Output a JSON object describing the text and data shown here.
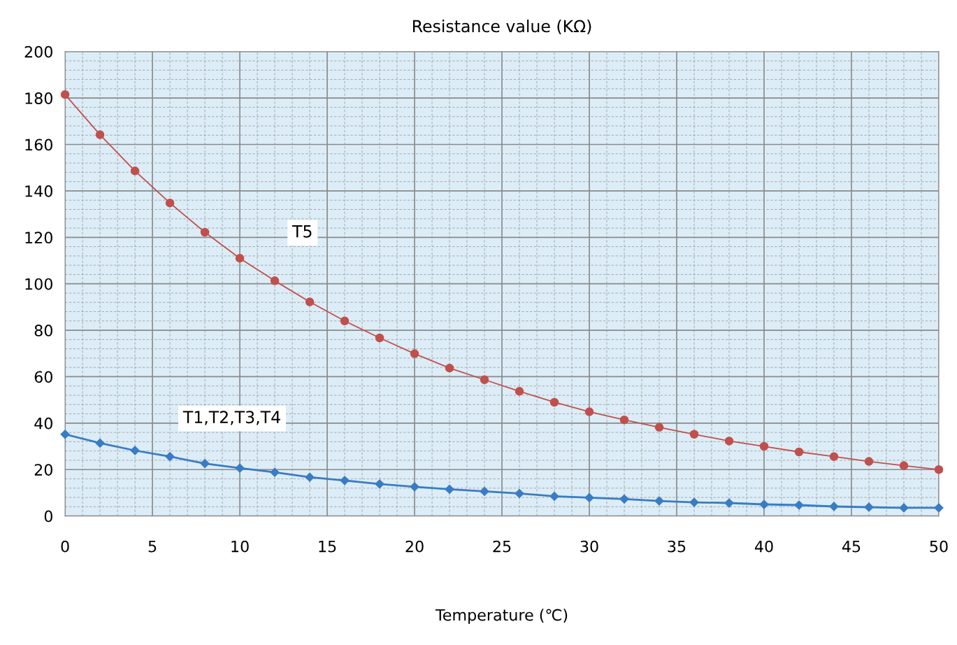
{
  "chart_data": {
    "type": "line",
    "title": "Resistance value (KΩ)",
    "xlabel": "Temperature (℃)",
    "x": [
      0,
      2,
      4,
      6,
      8,
      10,
      12,
      14,
      16,
      18,
      20,
      22,
      24,
      26,
      28,
      30,
      32,
      34,
      36,
      38,
      40,
      42,
      44,
      46,
      48,
      50
    ],
    "series": [
      {
        "name": "T5",
        "color": "#c0504d",
        "marker": "circle",
        "values": [
          181.5,
          164.2,
          148.6,
          134.8,
          122.2,
          111.0,
          101.3,
          92.2,
          84.0,
          76.7,
          69.9,
          63.7,
          58.7,
          53.7,
          49.0,
          44.9,
          41.4,
          38.2,
          35.2,
          32.3,
          30.0,
          27.6,
          25.6,
          23.5,
          21.7,
          20.0
        ]
      },
      {
        "name": "T1,T2,T3,T4",
        "color": "#3a7cc4",
        "marker": "diamond",
        "values": [
          35.2,
          31.4,
          28.2,
          25.6,
          22.6,
          20.6,
          18.8,
          16.7,
          15.3,
          13.8,
          12.6,
          11.5,
          10.6,
          9.7,
          8.5,
          7.9,
          7.3,
          6.5,
          5.9,
          5.6,
          5.0,
          4.7,
          4.1,
          3.8,
          3.5,
          3.5
        ]
      }
    ],
    "xlim": [
      0,
      50
    ],
    "xticks": [
      0,
      5,
      10,
      15,
      20,
      25,
      30,
      35,
      40,
      45,
      50
    ],
    "ylim": [
      0,
      200
    ],
    "yticks": [
      0,
      20,
      40,
      60,
      80,
      100,
      120,
      140,
      160,
      180,
      200
    ],
    "grid": true,
    "line_style": "solid"
  }
}
